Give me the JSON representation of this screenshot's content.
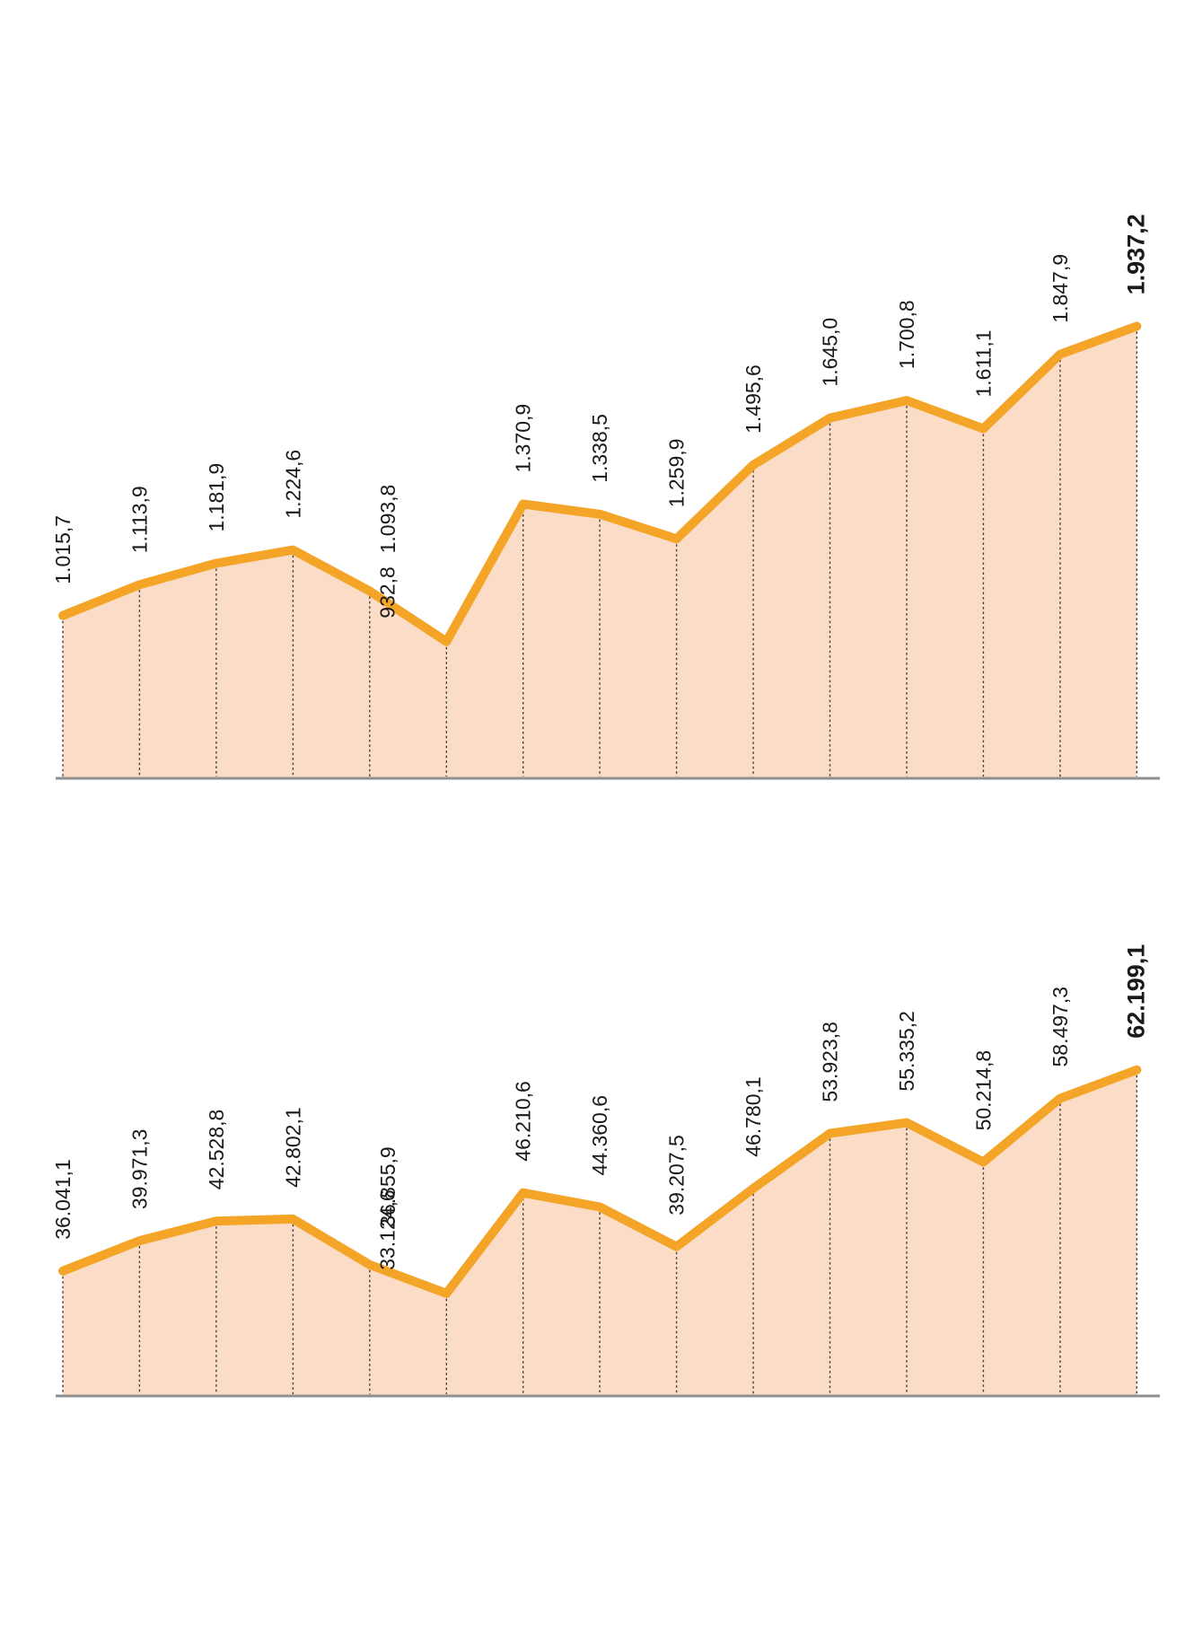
{
  "page": {
    "background": "#FFFFFF"
  },
  "colors": {
    "line": "#F4A426",
    "fill": "#FBDCC6",
    "label_text": "#1A1A1A",
    "axis": "#8F8F8F",
    "leader": "#3F3F3F"
  },
  "chart_data": [
    {
      "type": "area",
      "title": "",
      "xlabel": "",
      "ylabel": "",
      "legend": "none",
      "grid": "dotted vertical leader lines from each point to baseline",
      "values": [
        1015.7,
        1113.9,
        1181.9,
        1224.6,
        1093.8,
        932.8,
        1370.9,
        1338.5,
        1259.9,
        1495.6,
        1645.0,
        1700.8,
        1611.1,
        1847.9,
        1937.2
      ],
      "point_labels": [
        "1.015,7",
        "1.113,9",
        "1.181,9",
        "1.224,6",
        "1.093,8",
        "932,8",
        "1.370,9",
        "1.338,5",
        "1.259,9",
        "1.495,6",
        "1.645,0",
        "1.700,8",
        "1.611,1",
        "1.847,9",
        "1.937,2"
      ],
      "last_label_bold": true,
      "ylim": [
        500,
        2090
      ]
    },
    {
      "type": "area",
      "title": "",
      "xlabel": "",
      "ylabel": "",
      "legend": "none",
      "grid": "dotted vertical leader lines from each point to baseline",
      "values": [
        36041.1,
        39971.3,
        42528.8,
        42802.1,
        36855.9,
        33124.6,
        46210.6,
        44360.6,
        39207.5,
        46780.1,
        53923.8,
        55335.2,
        50214.8,
        58497.3,
        62199.1
      ],
      "point_labels": [
        "36.041,1",
        "39.971,3",
        "42.528,8",
        "42.802,1",
        "36.855,9",
        "33.124,6",
        "46.210,6",
        "44.360,6",
        "39.207,5",
        "46.780,1",
        "53.923,8",
        "55.335,2",
        "50.214,8",
        "58.497,3",
        "62.199,1"
      ],
      "last_label_bold": true,
      "ylim": [
        19900,
        72800
      ]
    }
  ]
}
